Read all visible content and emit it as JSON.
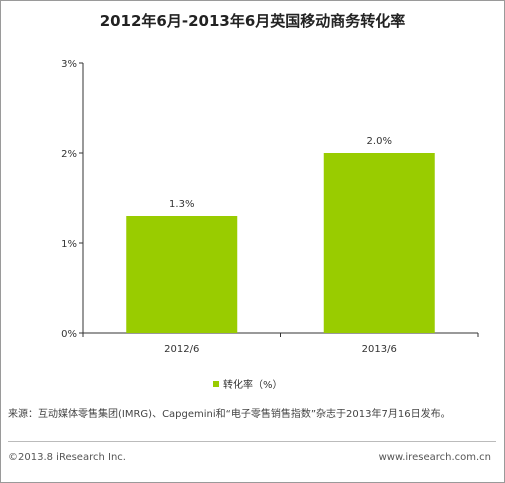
{
  "chart_data": {
    "type": "bar",
    "title": "2012年6月-2013年6月英国移动商务转化率",
    "categories": [
      "2012/6",
      "2013/6"
    ],
    "series": [
      {
        "name": "转化率（%）",
        "values": [
          1.3,
          2.0
        ],
        "labels": [
          "1.3%",
          "2.0%"
        ]
      }
    ],
    "ylim": [
      0,
      3
    ],
    "yticks": [
      0,
      1,
      2,
      3
    ],
    "ytick_labels": [
      "0%",
      "1%",
      "2%",
      "3%"
    ],
    "grid": false,
    "legend": "bottom",
    "colors": {
      "bar": "#99cc00",
      "axis": "#333333"
    }
  },
  "source_note": "来源：互动媒体零售集团(IMRG)、Capgemini和“电子零售销售指数”杂志于2013年7月16日发布。",
  "footer": {
    "copyright": "©2013.8 iResearch Inc.",
    "website": "www.iresearch.com.cn"
  }
}
